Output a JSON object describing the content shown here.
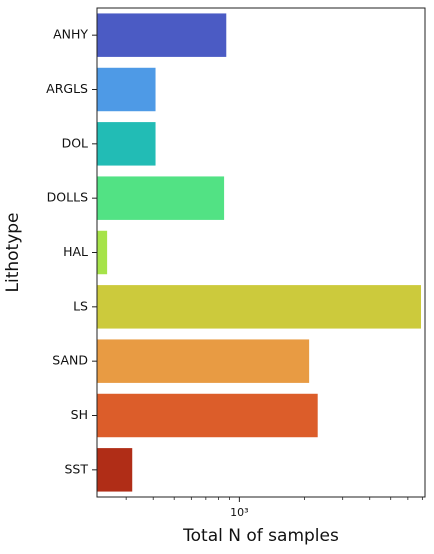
{
  "chart_data": {
    "type": "bar",
    "orientation": "horizontal",
    "xscale": "log",
    "xlabel": "Total N of samples",
    "ylabel": "Lithotype",
    "xlim": [
      220,
      7200
    ],
    "x_ticks": [
      {
        "value": 1000,
        "label": "10³"
      }
    ],
    "grid": false,
    "legend": "none",
    "categories": [
      "ANHY",
      "ARGLS",
      "DOL",
      "DOLLS",
      "HAL",
      "LS",
      "SAND",
      "SH",
      "SST"
    ],
    "values": [
      870,
      410,
      410,
      850,
      245,
      6900,
      2100,
      2300,
      320
    ],
    "colors": [
      "#4b5bc4",
      "#4e9ae6",
      "#22bcb5",
      "#52e284",
      "#a6e349",
      "#ccca3c",
      "#e89b43",
      "#dc5d2a",
      "#b02d17"
    ]
  }
}
